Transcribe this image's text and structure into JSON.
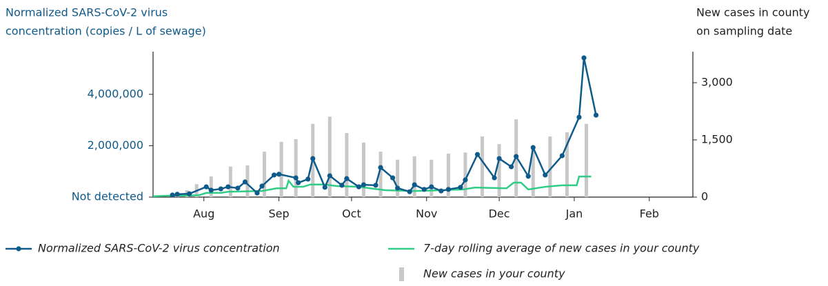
{
  "chart_data": {
    "type": "combo",
    "ylabel": [
      "Normalized SARS-CoV-2 virus",
      "concentration (copies / L of sewage)"
    ],
    "y2label": [
      "New cases in county",
      "on sampling date"
    ],
    "xlim": [
      -21,
      202
    ],
    "xticks": [
      {
        "value": 0,
        "label": "Aug"
      },
      {
        "value": 31,
        "label": "Sep"
      },
      {
        "value": 61,
        "label": "Oct"
      },
      {
        "value": 92,
        "label": "Nov"
      },
      {
        "value": 122,
        "label": "Dec"
      },
      {
        "value": 153,
        "label": "Jan"
      },
      {
        "value": 184,
        "label": "Feb"
      }
    ],
    "ylim": [
      0,
      5660000
    ],
    "yticks": [
      {
        "value": 0,
        "label": "Not detected"
      },
      {
        "value": 2000000,
        "label": "2,000,000"
      },
      {
        "value": 4000000,
        "label": "4,000,000"
      }
    ],
    "y2lim": [
      0,
      3813
    ],
    "y2ticks": [
      0,
      {
        "value": 1500,
        "label": "1,500"
      },
      {
        "value": 3000,
        "label": "3,000"
      }
    ],
    "series": [
      {
        "name": "New cases in your county",
        "type": "bar",
        "axis": "y2",
        "color": "#c8c8c8",
        "x": [
          -11,
          -7,
          -3,
          3,
          11,
          18,
          25,
          32,
          38,
          45,
          52,
          59,
          66,
          73,
          80,
          87,
          94,
          101,
          108,
          115,
          122,
          129,
          136,
          143,
          150,
          158
        ],
        "values": [
          130,
          180,
          340,
          540,
          800,
          830,
          1190,
          1450,
          1520,
          1920,
          2110,
          1680,
          1430,
          1190,
          980,
          1070,
          980,
          1140,
          1170,
          1590,
          1390,
          2040,
          1340,
          1590,
          1700,
          1920
        ]
      },
      {
        "name": "7-day rolling average of new cases in your county",
        "type": "line",
        "axis": "y2",
        "color": "#2ecc85",
        "x": [
          -21,
          -13,
          -7,
          -2,
          1,
          7,
          10,
          24,
          30,
          34,
          35,
          37,
          41,
          44,
          50,
          55,
          64,
          70,
          75,
          87,
          98,
          107,
          112,
          125,
          128,
          131,
          134,
          141,
          148,
          154,
          155,
          160
        ],
        "values": [
          20,
          40,
          40,
          50,
          110,
          110,
          140,
          160,
          230,
          230,
          430,
          270,
          270,
          330,
          330,
          290,
          270,
          220,
          180,
          160,
          180,
          200,
          250,
          230,
          380,
          380,
          200,
          270,
          310,
          310,
          540,
          540
        ]
      },
      {
        "name": "Normalized SARS-CoV-2 virus concentration",
        "type": "line-markers",
        "axis": "y",
        "color": "#0e5a8a",
        "x": [
          -13,
          -11,
          -6,
          1,
          3,
          7,
          10,
          14,
          17,
          22,
          24,
          29,
          31,
          38,
          39,
          43,
          45,
          50,
          52,
          57,
          59,
          64,
          66,
          71,
          73,
          78,
          80,
          85,
          87,
          91,
          94,
          98,
          101,
          106,
          108,
          113,
          120,
          122,
          127,
          129,
          134,
          136,
          141,
          148,
          155,
          157,
          162
        ],
        "values": [
          80000,
          110000,
          130000,
          400000,
          270000,
          320000,
          400000,
          350000,
          590000,
          160000,
          430000,
          860000,
          890000,
          750000,
          560000,
          700000,
          1500000,
          380000,
          830000,
          460000,
          720000,
          400000,
          480000,
          460000,
          1150000,
          750000,
          350000,
          210000,
          480000,
          300000,
          400000,
          240000,
          300000,
          380000,
          670000,
          1660000,
          750000,
          1500000,
          1180000,
          1580000,
          810000,
          1930000,
          860000,
          1610000,
          3110000,
          5420000,
          3190000
        ]
      }
    ]
  }
}
